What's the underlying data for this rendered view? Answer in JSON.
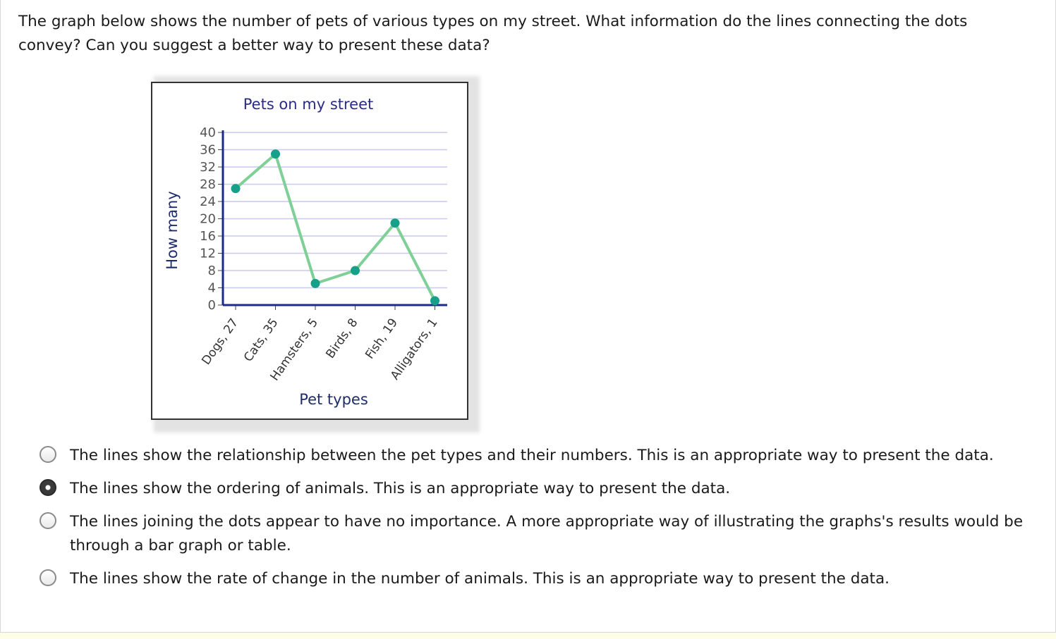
{
  "question": "The graph below shows the number of pets of various types on my street. What information do the lines connecting the dots convey? Can you suggest a better way to present these data?",
  "chart_data": {
    "type": "line",
    "title": "Pets on my street",
    "xlabel": "Pet types",
    "ylabel": "How many",
    "categories": [
      "Dogs, 27",
      "Cats, 35",
      "Hamsters, 5",
      "Birds, 8",
      "Fish, 19",
      "Alligators, 1"
    ],
    "values": [
      27,
      35,
      5,
      8,
      19,
      1
    ],
    "yticks": [
      "0",
      "4",
      "8",
      "12",
      "16",
      "20",
      "24",
      "28",
      "32",
      "36",
      "40"
    ],
    "ylim": [
      0,
      40
    ],
    "grid": true,
    "line_color": "#7fd097",
    "marker_color": "#16a08a",
    "gridline_color": "#c9c9ee",
    "axis_color": "#1b2a8c"
  },
  "options": [
    {
      "text": "The lines show the relationship between the pet types and their numbers. This is an appropriate way to present the data.",
      "selected": false
    },
    {
      "text": "The lines show the ordering of animals. This is an appropriate way to present the data.",
      "selected": true
    },
    {
      "text": "The lines joining the dots appear to have no importance. A more appropriate way of illustrating the graphs's results would be through a bar graph or table.",
      "selected": false
    },
    {
      "text": "The lines show the rate of change in the number of animals. This is an appropriate way to present the data.",
      "selected": false
    }
  ]
}
